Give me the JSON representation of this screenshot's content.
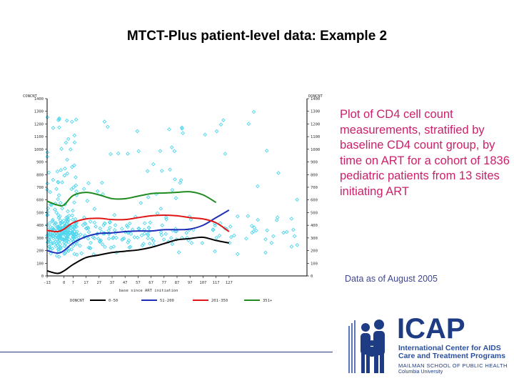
{
  "slide": {
    "title": "MTCT-Plus patient-level data: Example 2",
    "description": "Plot of CD4 cell count measurements, stratified by baseline CD4 count group, by time on ART for a cohort of 1836 pediatric patients from 13 sites initiating ART",
    "data_note": "Data as of August 2005"
  },
  "logo": {
    "wordmark": "ICAP",
    "line1": "International Center for AIDS",
    "line2": "Care and Treatment Programs",
    "line3": "MAILMAN SCHOOL OF PUBLIC HEALTH",
    "line4": "Columbia University"
  },
  "colors": {
    "scatter": "#4fd6ee",
    "series_black": "#000000",
    "series_blue": "#1f2fb8",
    "series_red": "#e01515",
    "series_green": "#1f8a1f",
    "title_text": "#000000",
    "description_text": "#cc1f6a",
    "data_note_text": "#3f4690",
    "logo_blue": "#1d3c83"
  },
  "chart_data": {
    "type": "scatter",
    "title": "",
    "y_left_label": "CONCNT",
    "y_right_label": "DONCNT",
    "xlabel": "base since ART initiation",
    "xlim": [
      -13,
      187
    ],
    "ylim": [
      0,
      1400
    ],
    "x_ticks": [
      -13,
      0,
      7,
      17,
      27,
      37,
      47,
      57,
      67,
      77,
      87,
      97,
      107,
      117,
      127
    ],
    "x_tick_labels": [
      "-13",
      "0",
      "7",
      "17",
      "27",
      "37",
      "47",
      "57",
      "67",
      "77",
      "87",
      "97",
      "107",
      "117",
      "127"
    ],
    "y_ticks_left": [
      0,
      100,
      200,
      300,
      400,
      500,
      600,
      700,
      800,
      900,
      1000,
      1100,
      1200,
      1300,
      1400
    ],
    "y_ticks_right": [
      0,
      100,
      200,
      300,
      400,
      500,
      600,
      700,
      800,
      900,
      1000,
      1100,
      1200,
      1300,
      1400
    ],
    "grid": false,
    "legend": {
      "placement": "bottom",
      "prefix": "DONCNT",
      "entries": [
        "0-50",
        "51-200",
        "201-350",
        "351+"
      ]
    },
    "series": [
      {
        "name": "0-50",
        "color": "#000000",
        "x": [
          -13,
          -5,
          0,
          7,
          17,
          27,
          37,
          47,
          57,
          67,
          77,
          87,
          97,
          107,
          117,
          127
        ],
        "y": [
          40,
          20,
          40,
          90,
          145,
          165,
          185,
          195,
          205,
          225,
          255,
          285,
          295,
          305,
          280,
          260
        ]
      },
      {
        "name": "51-200",
        "color": "#1f2fb8",
        "x": [
          -13,
          -5,
          0,
          7,
          17,
          27,
          37,
          47,
          57,
          67,
          77,
          87,
          97,
          107,
          117,
          127
        ],
        "y": [
          200,
          180,
          200,
          260,
          310,
          335,
          340,
          350,
          355,
          355,
          365,
          365,
          370,
          400,
          460,
          520
        ]
      },
      {
        "name": "201-350",
        "color": "#e01515",
        "x": [
          -13,
          -5,
          0,
          7,
          17,
          27,
          37,
          47,
          57,
          67,
          77,
          87,
          97,
          107,
          117,
          127
        ],
        "y": [
          360,
          350,
          370,
          420,
          450,
          455,
          445,
          445,
          460,
          475,
          480,
          475,
          460,
          450,
          420,
          350
        ]
      },
      {
        "name": "351+",
        "color": "#1f8a1f",
        "x": [
          -13,
          -5,
          0,
          7,
          17,
          27,
          37,
          47,
          57,
          67,
          77,
          87,
          97,
          107,
          117
        ],
        "y": [
          590,
          560,
          560,
          635,
          660,
          640,
          610,
          610,
          630,
          650,
          655,
          660,
          665,
          640,
          580
        ]
      }
    ]
  }
}
